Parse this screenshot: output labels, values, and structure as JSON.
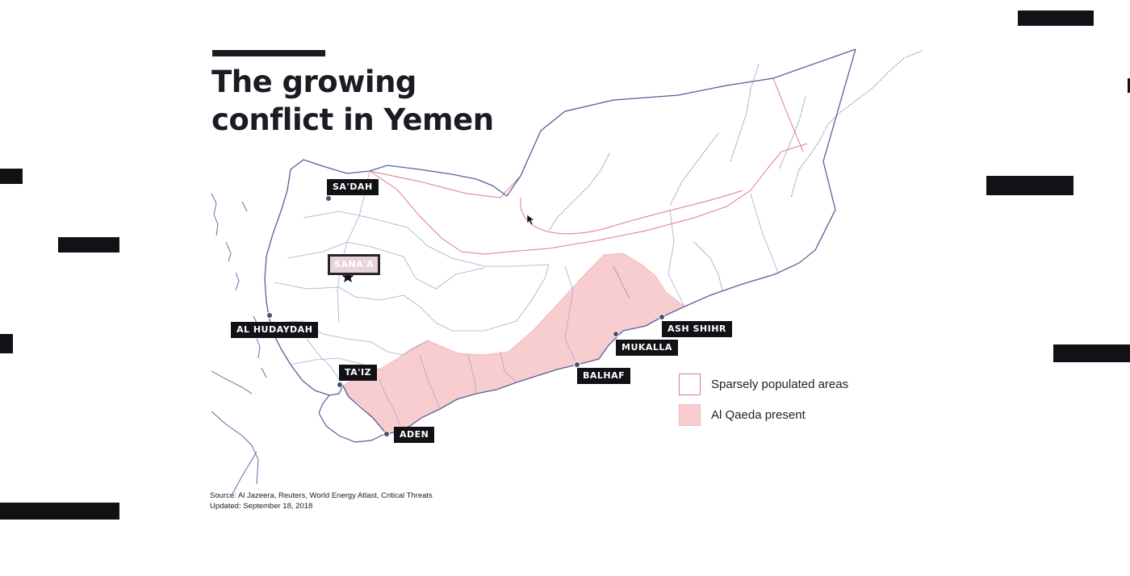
{
  "title": {
    "line1": "The growing",
    "line2": "conflict in Yemen"
  },
  "capital": {
    "name": "SANA'A"
  },
  "cities": [
    {
      "id": "sadah",
      "label": "SA'DAH"
    },
    {
      "id": "al-hudaydah",
      "label": "AL HUDAYDAH"
    },
    {
      "id": "taiz",
      "label": "TA'IZ"
    },
    {
      "id": "aden",
      "label": "ADEN"
    },
    {
      "id": "balhaf",
      "label": "BALHAF"
    },
    {
      "id": "mukalla",
      "label": "MUKALLA"
    },
    {
      "id": "ash-shihr",
      "label": "ASH SHIHR"
    }
  ],
  "legend": {
    "sparse": "Sparsely populated areas",
    "al_qaeda": "Al Qaeda present"
  },
  "source": {
    "line1": "Source: Al Jazeera, Reuters, World Energy Atlast, Critical Threats",
    "line2": "Updated: September 18, 2018"
  },
  "colors": {
    "border": "#5b5e98",
    "sparse_outline": "#e07a86",
    "al_qaeda_fill": "#f8cdcf",
    "label_bg": "#111116",
    "city_dot": "#4c4f6e"
  }
}
